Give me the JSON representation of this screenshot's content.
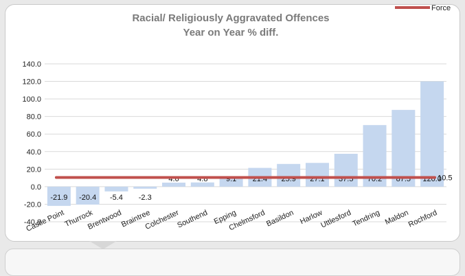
{
  "chart_data": {
    "type": "bar",
    "title": "Racial/ Religiously Aggravated Offences",
    "subtitle": "Year on Year % diff.",
    "categories": [
      "Castle Point",
      "Thurrock",
      "Brentwood",
      "Braintree",
      "Colchester",
      "Southend",
      "Epping",
      "Chelmsford",
      "Basildon",
      "Harlow",
      "Uttlesford",
      "Tendring",
      "Maldon",
      "Rochford"
    ],
    "values": [
      -21.9,
      -20.4,
      -5.4,
      -2.3,
      4.6,
      4.8,
      9.1,
      21.4,
      25.9,
      27.1,
      37.5,
      70.2,
      87.5,
      120.0
    ],
    "value_labels": [
      "-21.9",
      "-20.4",
      "-5.4",
      "-2.3",
      "4.6",
      "4.8",
      "9.1",
      "21.4",
      "25.9",
      "27.1",
      "37.5",
      "70.2",
      "87.5",
      "120.0"
    ],
    "ylim": [
      -40,
      140
    ],
    "yticks": [
      140,
      120,
      100,
      80,
      60,
      40,
      20,
      0,
      -20,
      -40
    ],
    "ytick_labels": [
      "140.0",
      "120.0",
      "100.0",
      "80.0",
      "60.0",
      "40.0",
      "20.0",
      "0.0",
      "-20.0",
      "-40.0"
    ],
    "grid": true,
    "bar_color": "#c5d7ef",
    "force": {
      "name": "Force",
      "value": 10.5,
      "label": "10.5",
      "color": "#c0504d"
    },
    "legend_position": "top-right"
  }
}
